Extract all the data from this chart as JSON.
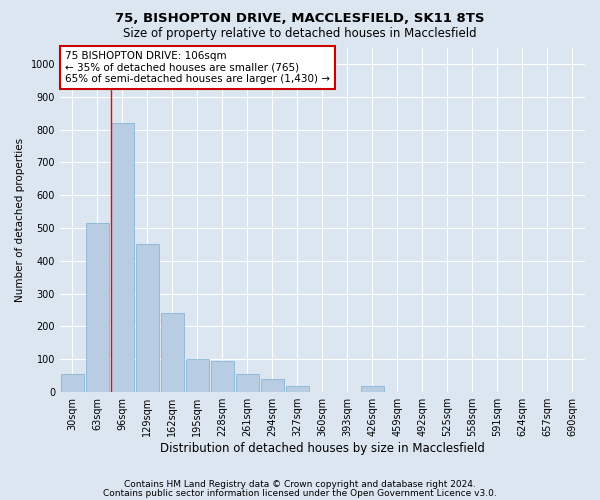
{
  "title": "75, BISHOPTON DRIVE, MACCLESFIELD, SK11 8TS",
  "subtitle": "Size of property relative to detached houses in Macclesfield",
  "xlabel": "Distribution of detached houses by size in Macclesfield",
  "ylabel": "Number of detached properties",
  "footnote1": "Contains HM Land Registry data © Crown copyright and database right 2024.",
  "footnote2": "Contains public sector information licensed under the Open Government Licence v3.0.",
  "bar_labels": [
    "30sqm",
    "63sqm",
    "96sqm",
    "129sqm",
    "162sqm",
    "195sqm",
    "228sqm",
    "261sqm",
    "294sqm",
    "327sqm",
    "360sqm",
    "393sqm",
    "426sqm",
    "459sqm",
    "492sqm",
    "525sqm",
    "558sqm",
    "591sqm",
    "624sqm",
    "657sqm",
    "690sqm"
  ],
  "bar_values": [
    55,
    515,
    820,
    450,
    240,
    100,
    95,
    55,
    40,
    20,
    0,
    0,
    20,
    0,
    0,
    0,
    0,
    0,
    0,
    0,
    0
  ],
  "bar_color": "#b8cce4",
  "bar_edge_color": "#7bafd4",
  "background_color": "#dce6f1",
  "plot_bg_color": "#dce6f1",
  "grid_color": "#ffffff",
  "annotation_line1": "75 BISHOPTON DRIVE: 106sqm",
  "annotation_line2": "← 35% of detached houses are smaller (765)",
  "annotation_line3": "65% of semi-detached houses are larger (1,430) →",
  "annotation_box_color": "#ffffff",
  "annotation_box_edge": "#cc0000",
  "redline_bar_index": 2,
  "ylim": [
    0,
    1050
  ],
  "yticks": [
    0,
    100,
    200,
    300,
    400,
    500,
    600,
    700,
    800,
    900,
    1000
  ],
  "title_fontsize": 9.5,
  "subtitle_fontsize": 8.5,
  "xlabel_fontsize": 8.5,
  "ylabel_fontsize": 7.5,
  "tick_fontsize": 7,
  "annot_fontsize": 7.5,
  "footnote_fontsize": 6.5
}
